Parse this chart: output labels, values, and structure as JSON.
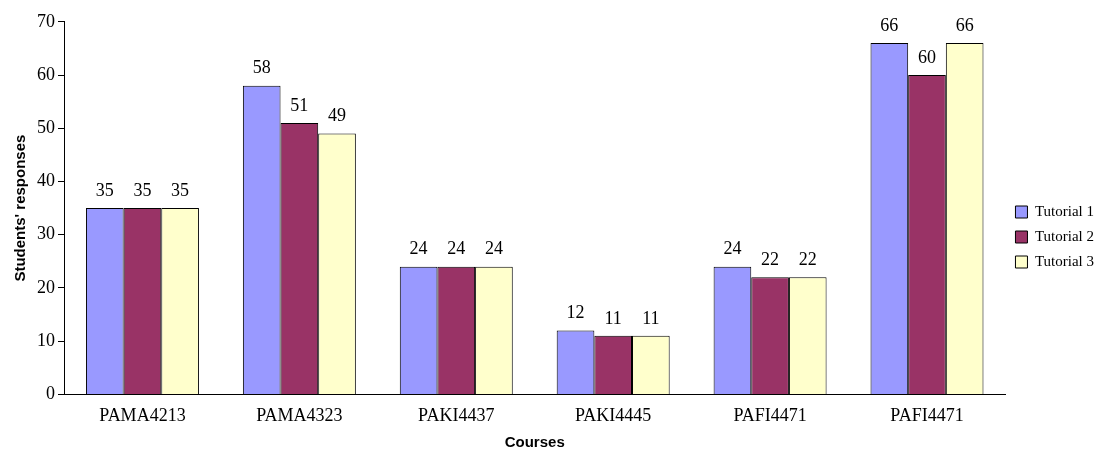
{
  "chart_data": {
    "type": "bar",
    "xlabel": "Courses",
    "ylabel": "Students' responses",
    "categories": [
      "PAMA4213",
      "PAMA4323",
      "PAKI4437",
      "PAKI4445",
      "PAFI4471",
      "PAFI4471"
    ],
    "series": [
      {
        "name": "Tutorial 1",
        "color": "#9999ff",
        "values": [
          35,
          58,
          24,
          12,
          24,
          66
        ]
      },
      {
        "name": "Tutorial 2",
        "color": "#993366",
        "values": [
          35,
          51,
          24,
          11,
          22,
          60
        ]
      },
      {
        "name": "Tutorial 3",
        "color": "#ffffcc",
        "values": [
          35,
          49,
          24,
          11,
          22,
          66
        ]
      }
    ],
    "ylim": [
      0,
      70
    ],
    "yticks": [
      0,
      10,
      20,
      30,
      40,
      50,
      60,
      70
    ],
    "grid": false,
    "legend": "right",
    "data_labels": true
  }
}
